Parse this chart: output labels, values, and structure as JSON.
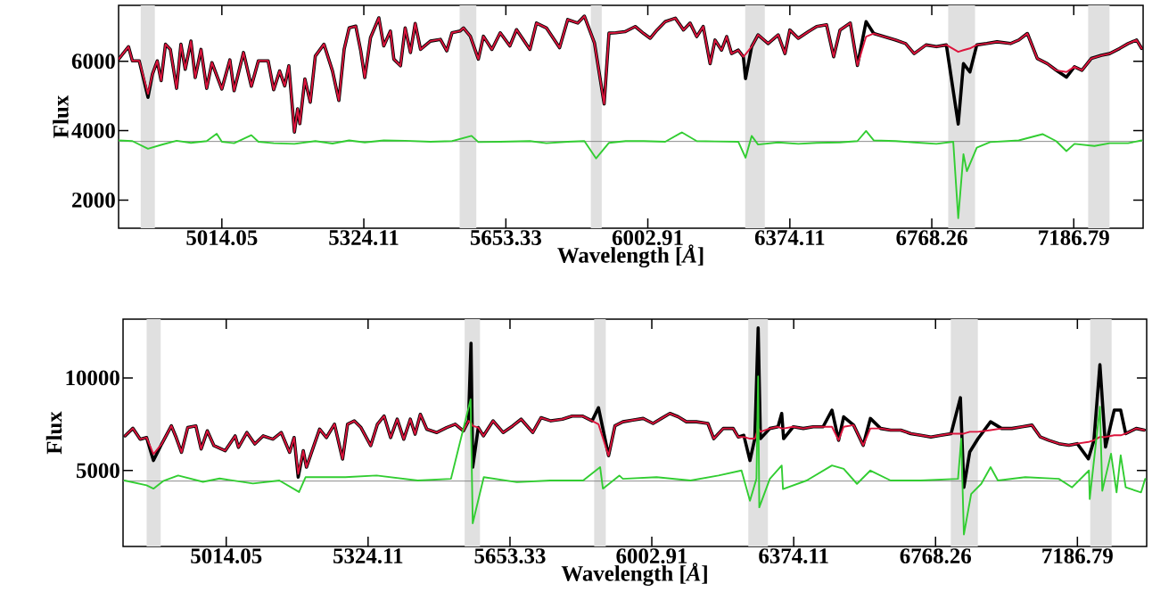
{
  "chart_data": [
    {
      "type": "line",
      "xlabel": "Wavelength [*Å*]",
      "ylabel": "Flux",
      "log": "x",
      "xlim": [
        4800,
        7400
      ],
      "ylim": [
        1190,
        7610
      ],
      "xticks": [
        5014.05,
        5324.11,
        5653.33,
        6002.91,
        6374.11,
        6768.26,
        7186.79
      ],
      "yticks": [
        2000,
        4000,
        6000
      ],
      "bands": [
        {
          "axis": "x",
          "from": 4845,
          "to": 4874,
          "color": "#e0e0e0"
        },
        {
          "axis": "x",
          "from": 5544,
          "to": 5583,
          "color": "#e0e0e0"
        },
        {
          "axis": "x",
          "from": 5860,
          "to": 5887,
          "color": "#e0e0e0"
        },
        {
          "axis": "x",
          "from": 6255,
          "to": 6307,
          "color": "#e0e0e0"
        },
        {
          "axis": "x",
          "from": 6815,
          "to": 6893,
          "color": "#e0e0e0"
        },
        {
          "axis": "x",
          "from": 7230,
          "to": 7296,
          "color": "#e0e0e0"
        }
      ],
      "ref_lines": [
        {
          "axis": "y",
          "value": 3690,
          "color": "#808080"
        }
      ],
      "series": [
        {
          "color": "#000000",
          "x": [
            4800,
            4820,
            4828,
            4842,
            4860,
            4869,
            4879,
            4887,
            4896,
            4906,
            4919,
            4928,
            4937,
            4949,
            4958,
            4970,
            4982,
            4993,
            5014,
            5031,
            5040,
            5060,
            5077,
            5092,
            5113,
            5125,
            5138,
            5149,
            5158,
            5170,
            5177,
            5182,
            5193,
            5205,
            5216,
            5235,
            5254,
            5268,
            5280,
            5291,
            5306,
            5317,
            5326,
            5339,
            5358,
            5369,
            5384,
            5392,
            5407,
            5418,
            5430,
            5441,
            5453,
            5476,
            5499,
            5514,
            5526,
            5545,
            5553,
            5569,
            5588,
            5600,
            5620,
            5640,
            5663,
            5679,
            5711,
            5727,
            5751,
            5783,
            5803,
            5828,
            5844,
            5869,
            5893,
            5905,
            5922,
            5945,
            5971,
            5992,
            6009,
            6026,
            6047,
            6073,
            6094,
            6111,
            6128,
            6145,
            6163,
            6176,
            6193,
            6206,
            6219,
            6237,
            6250,
            6256,
            6272,
            6289,
            6316,
            6343,
            6361,
            6374,
            6397,
            6424,
            6447,
            6474,
            6493,
            6511,
            6539,
            6559,
            6583,
            6604,
            6633,
            6666,
            6694,
            6718,
            6752,
            6781,
            6810,
            6844,
            6859,
            6878,
            6898,
            6927,
            6957,
            6997,
            7022,
            7047,
            7077,
            7107,
            7133,
            7164,
            7189,
            7211,
            7240,
            7271,
            7297,
            7328,
            7354,
            7380,
            7396
          ],
          "values": [
            6060,
            6420,
            6010,
            6010,
            4960,
            5630,
            6010,
            5440,
            6490,
            6340,
            5220,
            6490,
            5770,
            6580,
            5530,
            6340,
            5220,
            5960,
            5200,
            6040,
            5150,
            6250,
            5280,
            6010,
            6010,
            5180,
            5720,
            5290,
            5870,
            3960,
            4630,
            4200,
            5490,
            4820,
            6150,
            6490,
            5720,
            4870,
            6340,
            6960,
            7010,
            6300,
            5530,
            6680,
            7250,
            6440,
            6870,
            6060,
            5870,
            6960,
            6250,
            7090,
            6340,
            6580,
            6630,
            6300,
            6820,
            6870,
            6960,
            6720,
            6060,
            6720,
            6340,
            6820,
            6440,
            6910,
            6340,
            7100,
            6960,
            6390,
            7200,
            7100,
            7300,
            6530,
            4770,
            6810,
            6820,
            6850,
            7000,
            6800,
            6660,
            6900,
            7140,
            7240,
            6900,
            7100,
            6710,
            7000,
            5930,
            6610,
            6320,
            6710,
            6220,
            6320,
            6130,
            5500,
            6420,
            6760,
            6510,
            6760,
            6220,
            6900,
            6660,
            6850,
            7000,
            7050,
            6130,
            6900,
            7100,
            5880,
            7140,
            6800,
            6710,
            6610,
            6510,
            6220,
            6470,
            6420,
            6470,
            4190,
            5930,
            5690,
            6470,
            6510,
            6560,
            6510,
            6610,
            6800,
            6080,
            5930,
            5740,
            5540,
            5840,
            5740,
            6080,
            6170,
            6220,
            6370,
            6510,
            6610,
            6370
          ]
        },
        {
          "color": "#dc143c",
          "x": [
            4800,
            4820,
            4828,
            4842,
            4860,
            4869,
            4879,
            4887,
            4896,
            4906,
            4919,
            4928,
            4937,
            4949,
            4958,
            4970,
            4982,
            4993,
            5014,
            5031,
            5040,
            5060,
            5077,
            5092,
            5113,
            5125,
            5138,
            5149,
            5158,
            5170,
            5177,
            5182,
            5193,
            5205,
            5216,
            5235,
            5254,
            5268,
            5280,
            5291,
            5306,
            5317,
            5326,
            5339,
            5358,
            5369,
            5384,
            5392,
            5407,
            5418,
            5430,
            5441,
            5453,
            5476,
            5499,
            5514,
            5526,
            5545,
            5553,
            5569,
            5588,
            5600,
            5620,
            5640,
            5663,
            5679,
            5711,
            5727,
            5751,
            5783,
            5803,
            5828,
            5844,
            5869,
            5893,
            5905,
            5922,
            5945,
            5971,
            5992,
            6009,
            6026,
            6047,
            6073,
            6094,
            6111,
            6128,
            6145,
            6163,
            6176,
            6193,
            6206,
            6219,
            6237,
            6250,
            6256,
            6272,
            6289,
            6316,
            6343,
            6361,
            6374,
            6397,
            6424,
            6447,
            6474,
            6493,
            6511,
            6539,
            6559,
            6583,
            6604,
            6633,
            6666,
            6694,
            6718,
            6752,
            6781,
            6810,
            6844,
            6859,
            6878,
            6898,
            6927,
            6957,
            6997,
            7022,
            7047,
            7077,
            7107,
            7133,
            7164,
            7189,
            7211,
            7240,
            7271,
            7297,
            7328,
            7354,
            7380,
            7396
          ],
          "values": [
            6060,
            6420,
            6010,
            6010,
            5060,
            5630,
            6010,
            5440,
            6490,
            6340,
            5220,
            6490,
            5770,
            6580,
            5530,
            6340,
            5220,
            5960,
            5200,
            6040,
            5150,
            6250,
            5280,
            6010,
            6010,
            5180,
            5720,
            5290,
            5870,
            3960,
            4630,
            4200,
            5490,
            4820,
            6150,
            6490,
            5720,
            4870,
            6340,
            6960,
            7010,
            6300,
            5530,
            6680,
            7250,
            6440,
            6870,
            6060,
            5870,
            6960,
            6250,
            7090,
            6340,
            6580,
            6630,
            6300,
            6820,
            6870,
            6960,
            6720,
            6060,
            6720,
            6340,
            6820,
            6440,
            6910,
            6340,
            7100,
            6960,
            6390,
            7200,
            7100,
            7300,
            6530,
            4770,
            6810,
            6820,
            6850,
            7000,
            6800,
            6660,
            6900,
            7140,
            7240,
            6900,
            7100,
            6710,
            7000,
            5930,
            6610,
            6320,
            6710,
            6220,
            6320,
            6130,
            6200,
            6420,
            6760,
            6510,
            6760,
            6220,
            6900,
            6660,
            6850,
            7000,
            7050,
            6130,
            6900,
            7100,
            5880,
            6710,
            6800,
            6710,
            6610,
            6510,
            6220,
            6470,
            6420,
            6470,
            6270,
            6320,
            6370,
            6470,
            6510,
            6560,
            6510,
            6610,
            6800,
            6080,
            5930,
            5740,
            5690,
            5840,
            5740,
            6080,
            6170,
            6220,
            6370,
            6510,
            6610,
            6370
          ]
        },
        {
          "color": "#32cd32",
          "x": [
            4800,
            4828,
            4860,
            4887,
            4919,
            4949,
            4982,
            5003,
            5014,
            5040,
            5077,
            5092,
            5125,
            5170,
            5216,
            5254,
            5291,
            5326,
            5369,
            5418,
            5476,
            5526,
            5572,
            5588,
            5640,
            5711,
            5751,
            5803,
            5844,
            5873,
            5905,
            5947,
            5992,
            6047,
            6090,
            6128,
            6176,
            6237,
            6256,
            6272,
            6289,
            6343,
            6397,
            6447,
            6511,
            6559,
            6583,
            6604,
            6666,
            6718,
            6781,
            6830,
            6844,
            6859,
            6869,
            6898,
            6937,
            7022,
            7092,
            7133,
            7164,
            7189,
            7250,
            7297,
            7354,
            7396
          ],
          "values": [
            3720,
            3700,
            3480,
            3590,
            3710,
            3650,
            3700,
            3910,
            3680,
            3640,
            3870,
            3680,
            3640,
            3620,
            3700,
            3630,
            3720,
            3660,
            3720,
            3710,
            3680,
            3700,
            3850,
            3670,
            3680,
            3700,
            3640,
            3680,
            3700,
            3200,
            3650,
            3700,
            3700,
            3680,
            3950,
            3700,
            3690,
            3680,
            3220,
            3850,
            3600,
            3660,
            3620,
            3650,
            3660,
            3700,
            3990,
            3720,
            3700,
            3660,
            3620,
            3680,
            1480,
            3320,
            2830,
            3510,
            3670,
            3720,
            3900,
            3700,
            3410,
            3620,
            3560,
            3640,
            3640,
            3720
          ]
        }
      ]
    },
    {
      "type": "line",
      "xlabel": "Wavelength [*Å*]",
      "ylabel": "Flux",
      "log": "x",
      "xlim": [
        4800,
        7400
      ],
      "ylim": [
        900,
        13170
      ],
      "xticks": [
        5014.05,
        5324.11,
        5653.33,
        6002.91,
        6374.11,
        6768.26,
        7186.79
      ],
      "yticks": [
        5000,
        10000
      ],
      "bands": [
        {
          "axis": "x",
          "from": 4848,
          "to": 4877,
          "color": "#e0e0e0"
        },
        {
          "axis": "x",
          "from": 5546,
          "to": 5582,
          "color": "#e0e0e0"
        },
        {
          "axis": "x",
          "from": 5858,
          "to": 5887,
          "color": "#e0e0e0"
        },
        {
          "axis": "x",
          "from": 6253,
          "to": 6305,
          "color": "#e0e0e0"
        },
        {
          "axis": "x",
          "from": 6812,
          "to": 6890,
          "color": "#e0e0e0"
        },
        {
          "axis": "x",
          "from": 7226,
          "to": 7291,
          "color": "#e0e0e0"
        }
      ],
      "ref_lines": [
        {
          "axis": "y",
          "value": 4430,
          "color": "#808080"
        }
      ],
      "series": [
        {
          "color": "#000000",
          "x": [
            4804,
            4820,
            4835,
            4848,
            4862,
            4879,
            4899,
            4909,
            4920,
            4933,
            4950,
            4961,
            4974,
            4988,
            5012,
            5033,
            5040,
            5058,
            5075,
            5093,
            5114,
            5132,
            5150,
            5160,
            5169,
            5180,
            5187,
            5202,
            5216,
            5231,
            5249,
            5267,
            5278,
            5293,
            5308,
            5330,
            5345,
            5360,
            5375,
            5390,
            5405,
            5420,
            5431,
            5443,
            5458,
            5481,
            5504,
            5524,
            5543,
            5555,
            5561,
            5565,
            5578,
            5590,
            5613,
            5637,
            5660,
            5680,
            5708,
            5728,
            5752,
            5780,
            5804,
            5829,
            5853,
            5869,
            5894,
            5910,
            5930,
            5955,
            5981,
            6006,
            6027,
            6049,
            6070,
            6091,
            6117,
            6147,
            6162,
            6187,
            6213,
            6226,
            6241,
            6257,
            6270,
            6279,
            6285,
            6310,
            6332,
            6342,
            6347,
            6373,
            6400,
            6427,
            6454,
            6478,
            6496,
            6510,
            6538,
            6564,
            6584,
            6613,
            6641,
            6669,
            6698,
            6726,
            6755,
            6784,
            6813,
            6840,
            6850,
            6867,
            6891,
            6928,
            6960,
            6990,
            7020,
            7050,
            7075,
            7100,
            7130,
            7161,
            7186,
            7220,
            7237,
            7256,
            7273,
            7299,
            7320,
            7335,
            7367,
            7393
          ],
          "values": [
            6870,
            7280,
            6690,
            6780,
            5540,
            6430,
            7410,
            6780,
            5980,
            7320,
            7410,
            6160,
            7140,
            6340,
            6070,
            6870,
            6250,
            7050,
            6430,
            6870,
            6690,
            7050,
            5980,
            6780,
            4640,
            6070,
            5180,
            6250,
            7230,
            6780,
            7500,
            5620,
            7500,
            7680,
            7320,
            6340,
            7500,
            7940,
            6780,
            7770,
            6690,
            7770,
            6960,
            8030,
            7230,
            7050,
            7320,
            7500,
            7140,
            7680,
            11870,
            5180,
            7320,
            6870,
            7680,
            7050,
            7410,
            7770,
            7050,
            7850,
            7680,
            7770,
            7940,
            7940,
            7680,
            8390,
            5800,
            7410,
            7630,
            7720,
            7810,
            7540,
            7810,
            8080,
            7900,
            7630,
            7630,
            7540,
            6720,
            7270,
            7270,
            6810,
            6900,
            5540,
            6720,
            12700,
            6720,
            7270,
            7360,
            8080,
            6720,
            7360,
            7270,
            7360,
            7360,
            8260,
            6630,
            7900,
            7450,
            6360,
            7810,
            7270,
            7180,
            7180,
            6990,
            6900,
            6810,
            6900,
            6990,
            8930,
            4090,
            6000,
            6720,
            7630,
            7270,
            7270,
            7360,
            7450,
            6810,
            6630,
            6450,
            6360,
            6450,
            5630,
            6630,
            10710,
            6270,
            8260,
            8260,
            6990,
            7270,
            7180
          ]
        },
        {
          "color": "#dc143c",
          "x": [
            4804,
            4820,
            4835,
            4848,
            4862,
            4879,
            4899,
            4909,
            4920,
            4933,
            4950,
            4961,
            4974,
            4988,
            5012,
            5033,
            5040,
            5058,
            5075,
            5093,
            5114,
            5132,
            5150,
            5160,
            5169,
            5180,
            5187,
            5202,
            5216,
            5231,
            5249,
            5267,
            5278,
            5293,
            5308,
            5330,
            5345,
            5360,
            5375,
            5390,
            5405,
            5420,
            5431,
            5443,
            5458,
            5481,
            5504,
            5524,
            5543,
            5555,
            5561,
            5565,
            5578,
            5590,
            5613,
            5637,
            5660,
            5680,
            5708,
            5728,
            5752,
            5780,
            5804,
            5829,
            5853,
            5869,
            5894,
            5910,
            5930,
            5955,
            5981,
            6006,
            6027,
            6049,
            6070,
            6091,
            6117,
            6147,
            6162,
            6187,
            6213,
            6226,
            6241,
            6257,
            6270,
            6279,
            6285,
            6310,
            6332,
            6342,
            6347,
            6373,
            6400,
            6427,
            6454,
            6478,
            6496,
            6510,
            6538,
            6564,
            6584,
            6613,
            6641,
            6669,
            6698,
            6726,
            6755,
            6784,
            6813,
            6840,
            6850,
            6867,
            6891,
            6928,
            6960,
            6990,
            7020,
            7050,
            7075,
            7100,
            7130,
            7161,
            7186,
            7220,
            7237,
            7256,
            7273,
            7299,
            7320,
            7335,
            7367,
            7393
          ],
          "values": [
            6870,
            7280,
            6690,
            6780,
            5890,
            6430,
            7410,
            6780,
            5980,
            7320,
            7410,
            6160,
            7140,
            6340,
            6070,
            6870,
            6250,
            7050,
            6430,
            6870,
            6690,
            7050,
            5980,
            6780,
            4820,
            6070,
            5180,
            6250,
            7230,
            6780,
            7500,
            5620,
            7500,
            7680,
            7320,
            6340,
            7500,
            7940,
            6780,
            7770,
            6690,
            7770,
            6960,
            8030,
            7230,
            7050,
            7320,
            7500,
            7140,
            7680,
            7590,
            7410,
            7320,
            6870,
            7680,
            7050,
            7410,
            7770,
            7050,
            7850,
            7680,
            7770,
            7940,
            7940,
            7680,
            7500,
            5800,
            7410,
            7630,
            7720,
            7810,
            7540,
            7810,
            8080,
            7900,
            7630,
            7630,
            7540,
            6720,
            7270,
            7270,
            6810,
            6810,
            6720,
            6720,
            7270,
            7090,
            7270,
            7360,
            7270,
            7270,
            7360,
            7270,
            7360,
            7360,
            7360,
            6630,
            7360,
            7450,
            6360,
            7270,
            7270,
            7180,
            7180,
            6990,
            6900,
            6810,
            6900,
            6990,
            6990,
            6990,
            7090,
            7090,
            7180,
            7270,
            7270,
            7360,
            7450,
            6810,
            6630,
            6450,
            6360,
            6450,
            6540,
            6630,
            6810,
            6810,
            6900,
            6900,
            6990,
            7270,
            7180
          ]
        },
        {
          "color": "#32cd32",
          "x": [
            4803,
            4848,
            4862,
            4882,
            4913,
            4965,
            5000,
            5071,
            5128,
            5171,
            5185,
            5214,
            5273,
            5343,
            5437,
            5514,
            5560,
            5565,
            5591,
            5670,
            5750,
            5831,
            5873,
            5880,
            5921,
            5930,
            6015,
            6102,
            6175,
            6235,
            6257,
            6274,
            6279,
            6282,
            6310,
            6342,
            6345,
            6409,
            6478,
            6510,
            6547,
            6584,
            6641,
            6726,
            6833,
            6842,
            6850,
            6871,
            6900,
            6928,
            6949,
            7030,
            7130,
            7171,
            7222,
            7224,
            7256,
            7263,
            7290,
            7307,
            7320,
            7335,
            7383,
            7396
          ],
          "values": [
            4460,
            4200,
            4020,
            4430,
            4730,
            4390,
            4570,
            4300,
            4460,
            3840,
            4640,
            4640,
            4640,
            4730,
            4460,
            4550,
            8840,
            2150,
            4640,
            4370,
            4460,
            4460,
            5180,
            4020,
            4730,
            4550,
            4640,
            4460,
            4730,
            5000,
            3370,
            4550,
            10080,
            3010,
            4550,
            5270,
            4000,
            4460,
            5270,
            5090,
            4280,
            5000,
            4460,
            4460,
            4550,
            6720,
            1550,
            3730,
            4280,
            5180,
            4460,
            4640,
            4550,
            4090,
            5000,
            3460,
            8440,
            3910,
            5910,
            3820,
            5820,
            4090,
            3820,
            4550
          ]
        }
      ]
    }
  ]
}
